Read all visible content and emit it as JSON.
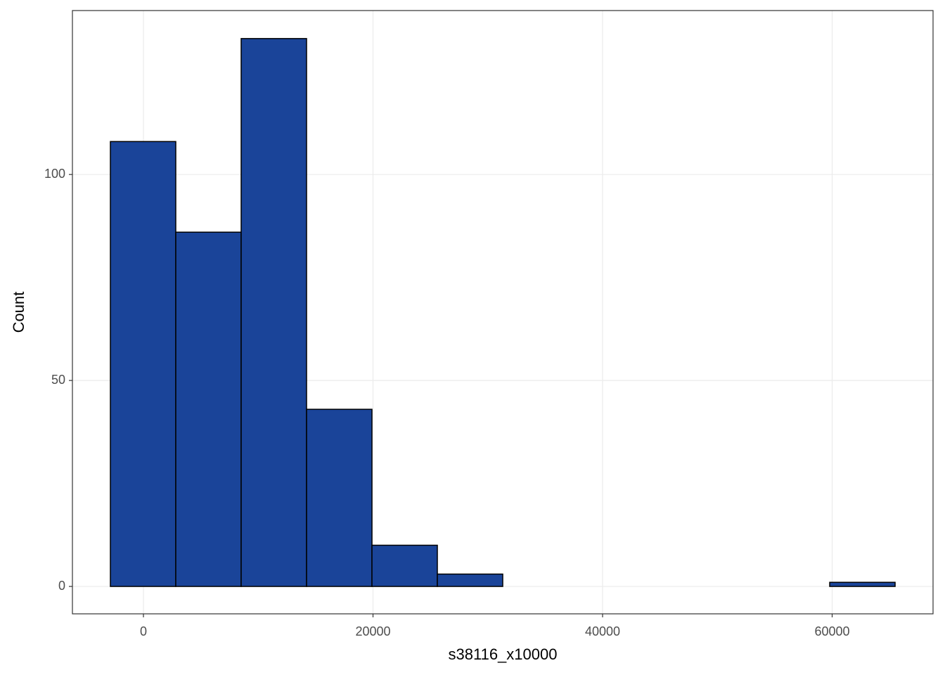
{
  "chart_data": {
    "type": "histogram",
    "x_label": "s38116_x10000",
    "y_label": "Count",
    "bins": [
      -2880,
      2817,
      8514,
      14211,
      19908,
      25605,
      31302,
      36999,
      42696,
      48393,
      54090,
      59787,
      65484
    ],
    "values": [
      108,
      86,
      133,
      43,
      10,
      3,
      0,
      0,
      0,
      0,
      0,
      1
    ],
    "color": "#1a4499",
    "xlim": [
      -6187,
      68790
    ],
    "xticks": [
      0,
      20000,
      40000,
      60000
    ],
    "ylim": [
      -6.65,
      139.8
    ],
    "yticks": [
      0,
      50,
      100
    ],
    "grid": true
  }
}
